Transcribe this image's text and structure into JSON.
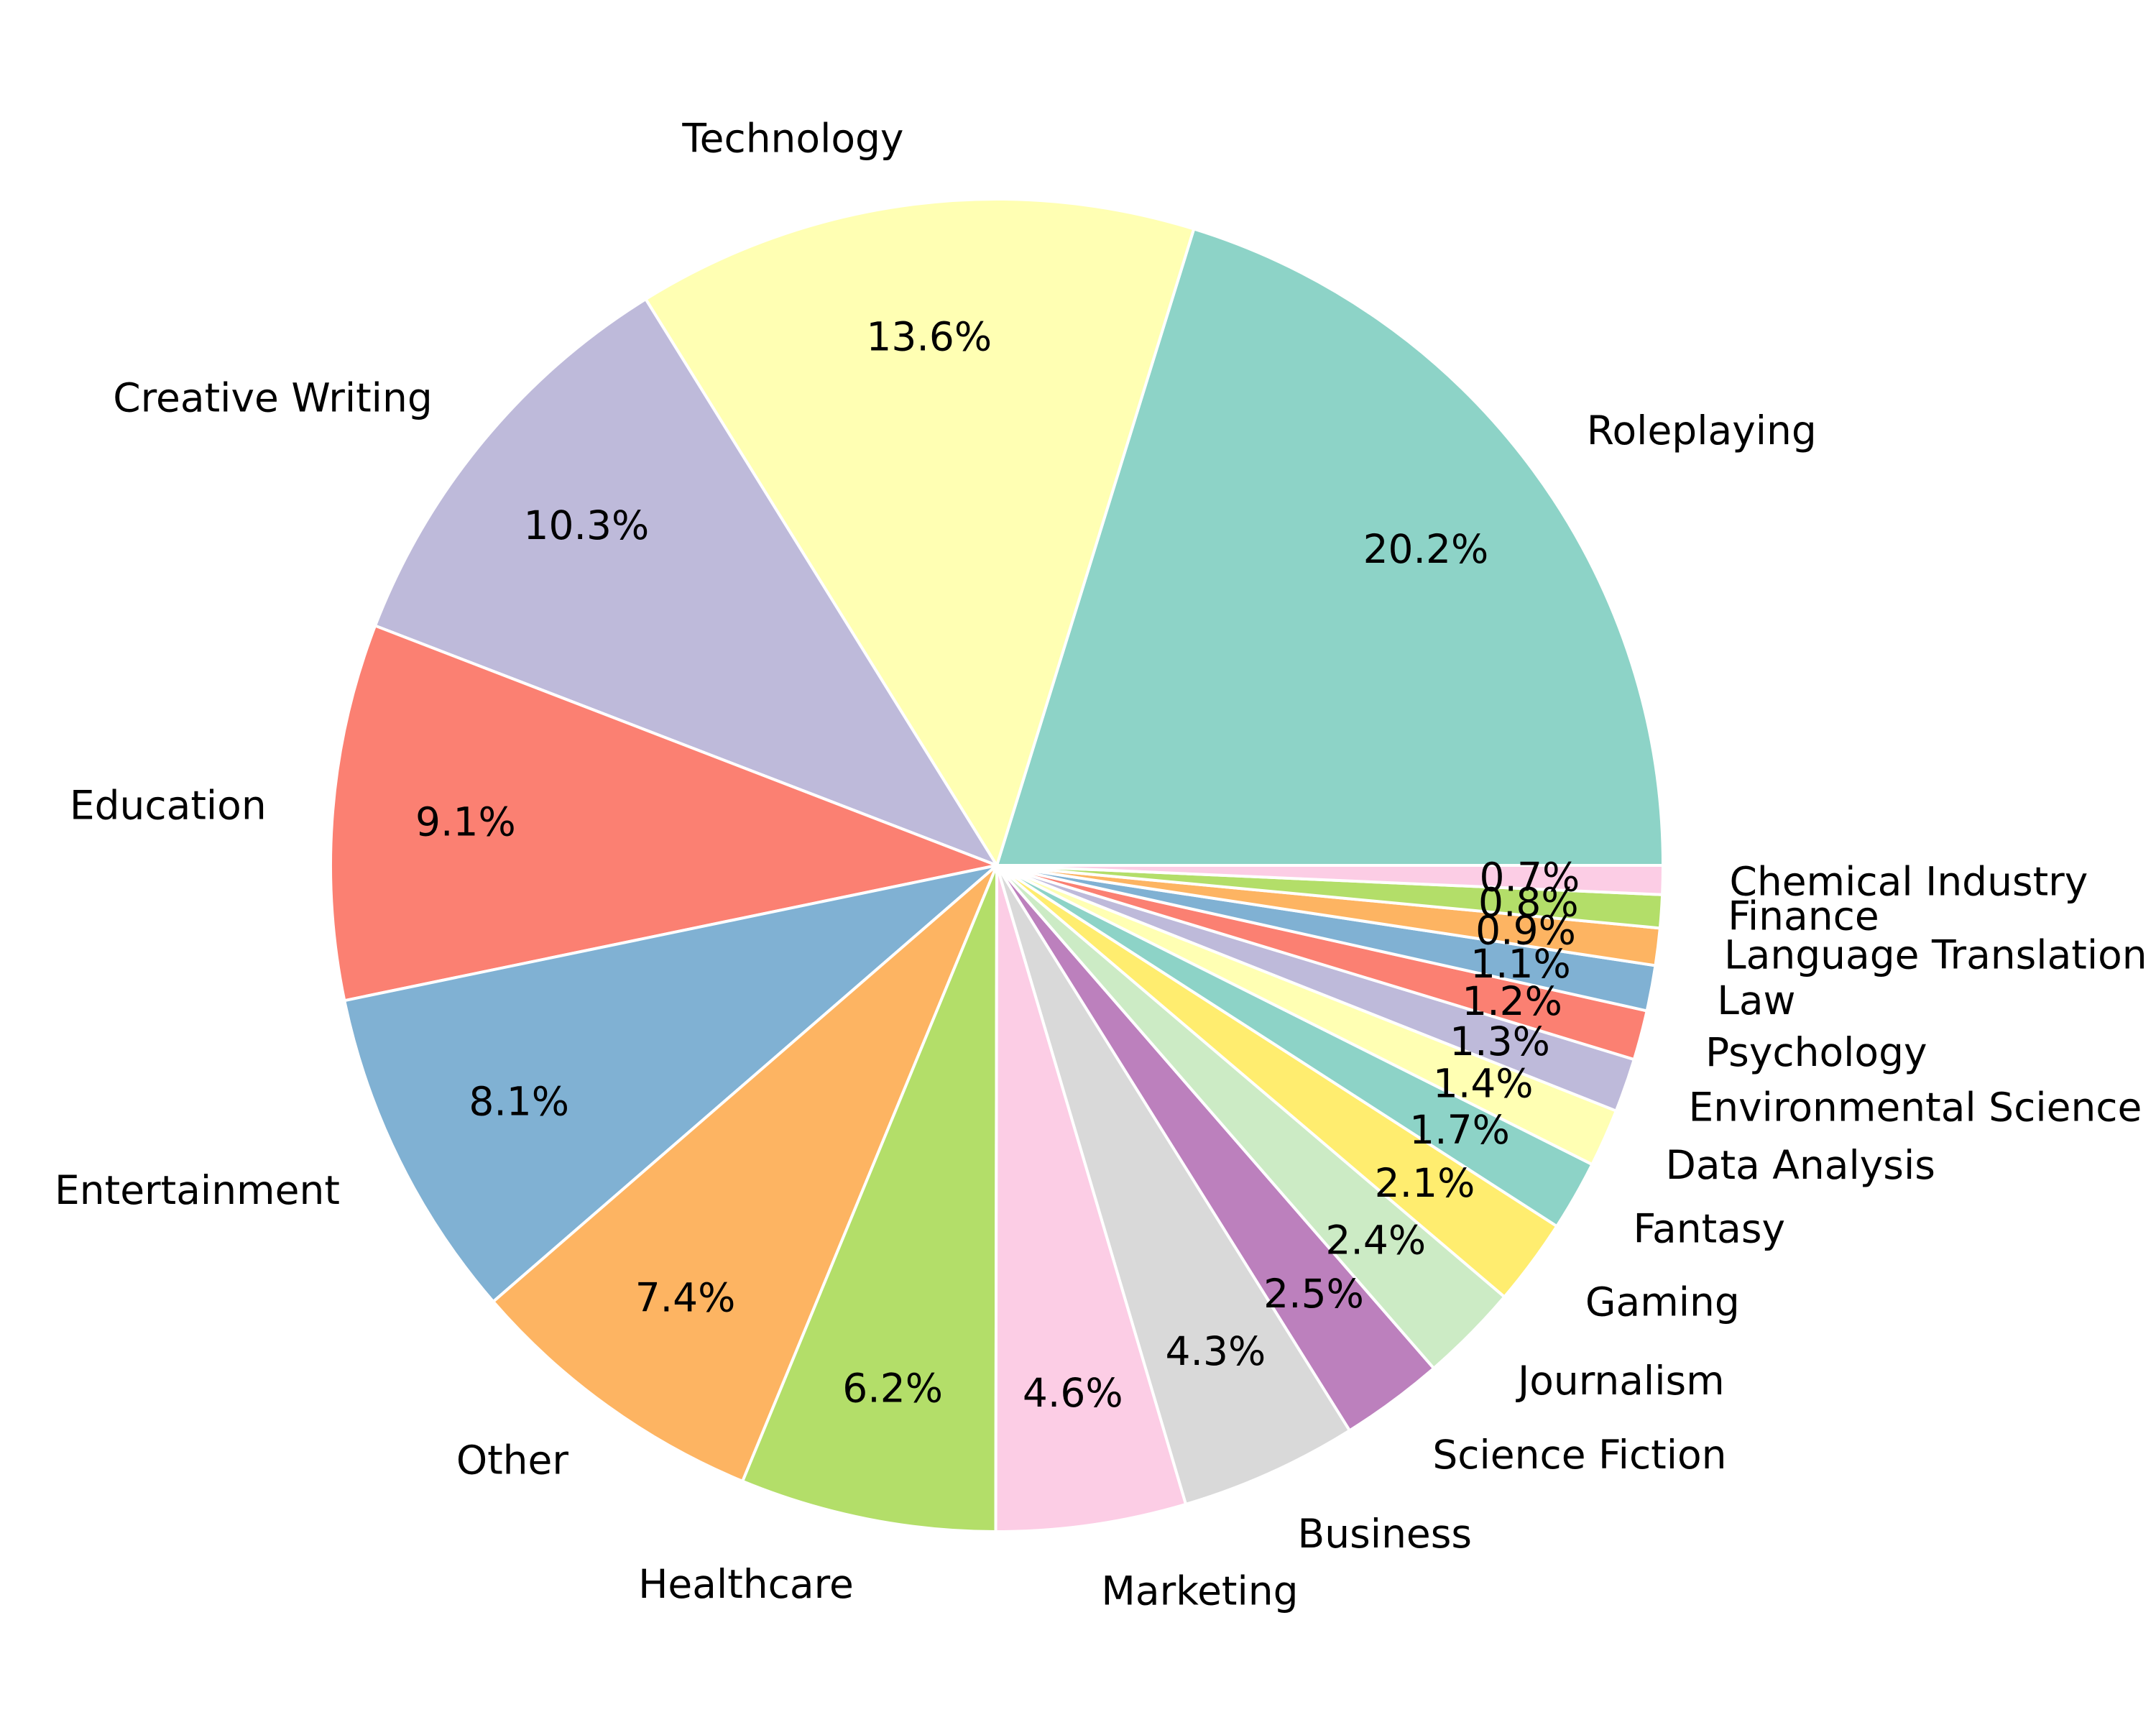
{
  "chart_data": {
    "type": "pie",
    "categories": [
      "Roleplaying",
      "Technology",
      "Creative Writing",
      "Education",
      "Entertainment",
      "Other",
      "Healthcare",
      "Marketing",
      "Business",
      "Science Fiction",
      "Journalism",
      "Gaming",
      "Fantasy",
      "Data Analysis",
      "Environmental Science",
      "Psychology",
      "Law",
      "Language Translation",
      "Finance",
      "Chemical Industry"
    ],
    "values": [
      20.2,
      13.6,
      10.3,
      9.1,
      8.1,
      7.4,
      6.2,
      4.6,
      4.3,
      2.5,
      2.4,
      2.1,
      1.7,
      1.4,
      1.3,
      1.2,
      1.1,
      0.9,
      0.8,
      0.7
    ],
    "percent_labels": [
      "20.2%",
      "13.6%",
      "10.3%",
      "9.1%",
      "8.1%",
      "7.4%",
      "6.2%",
      "4.6%",
      "4.3%",
      "2.5%",
      "2.4%",
      "2.1%",
      "1.7%",
      "1.4%",
      "1.3%",
      "1.2%",
      "1.1%",
      "0.9%",
      "0.8%",
      "0.7%"
    ],
    "colors": [
      "#8dd3c7",
      "#ffffb3",
      "#bebada",
      "#fb8072",
      "#80b1d3",
      "#fdb462",
      "#b3de69",
      "#fccde5",
      "#d9d9d9",
      "#bc80bd",
      "#ccebc5",
      "#ffed6f",
      "#8dd3c7",
      "#ffffb3",
      "#bebada",
      "#fb8072",
      "#80b1d3",
      "#fdb462",
      "#b3de69",
      "#fccde5"
    ],
    "start_angle_deg": 0,
    "direction": "counterclockwise",
    "edge_color": "#ffffff",
    "title": "",
    "legend": "none"
  }
}
